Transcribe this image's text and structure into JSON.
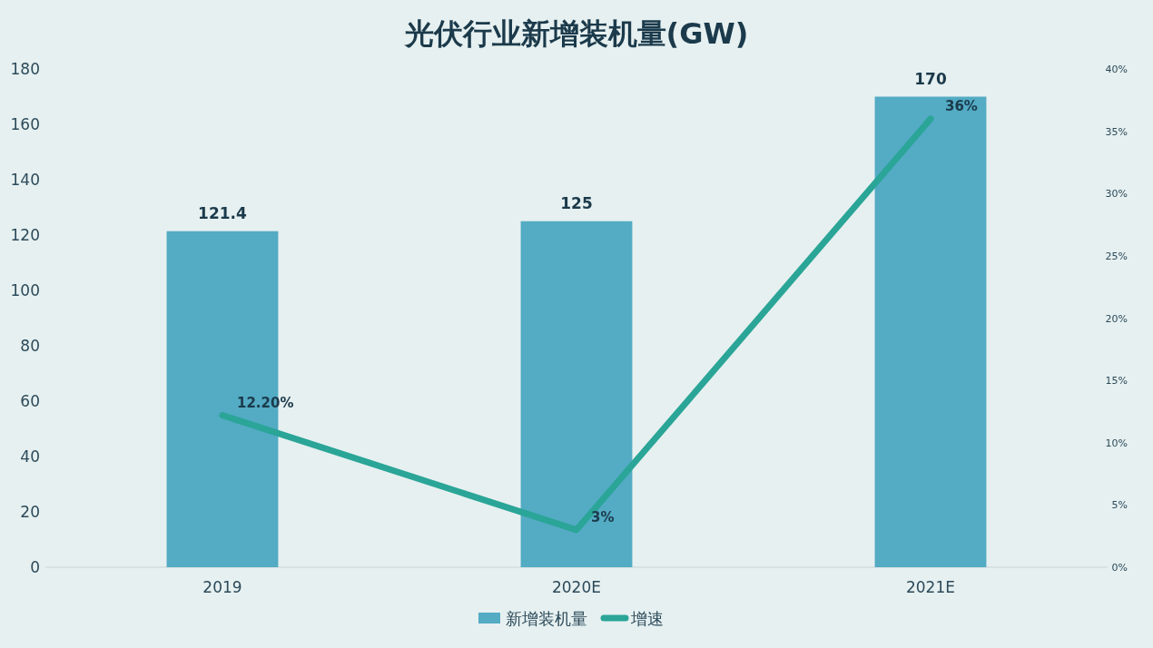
{
  "chart_data": {
    "type": "bar",
    "title": "光伏行业新增装机量(GW)",
    "categories": [
      "2019",
      "2020E",
      "2021E"
    ],
    "series": [
      {
        "name": "新增装机量",
        "color": "#53abc4",
        "values": [
          121.4,
          125,
          170
        ],
        "value_labels": [
          "121.4",
          "125",
          "170"
        ]
      },
      {
        "name": "增速",
        "type": "line",
        "axis": "y2",
        "color": "#2aa597",
        "values": [
          12.2,
          3,
          36
        ],
        "value_labels": [
          "12.20%",
          "3%",
          "36%"
        ]
      }
    ],
    "ylim": [
      0,
      180
    ],
    "yticks": [
      0,
      20,
      40,
      60,
      80,
      100,
      120,
      140,
      160,
      180
    ],
    "y2lim": [
      0,
      40
    ],
    "y2ticks": [
      {
        "value": 0,
        "label": "0%"
      },
      {
        "value": 5,
        "label": "5%"
      },
      {
        "value": 10,
        "label": "10%"
      },
      {
        "value": 15,
        "label": "15%"
      },
      {
        "value": 20,
        "label": "20%"
      },
      {
        "value": 25,
        "label": "25%"
      },
      {
        "value": 30,
        "label": "30%"
      },
      {
        "value": 35,
        "label": "35%"
      },
      {
        "value": 40,
        "label": "40%"
      }
    ],
    "legend": "bottom",
    "grid": false,
    "marker": "none",
    "line_style": "solid"
  }
}
